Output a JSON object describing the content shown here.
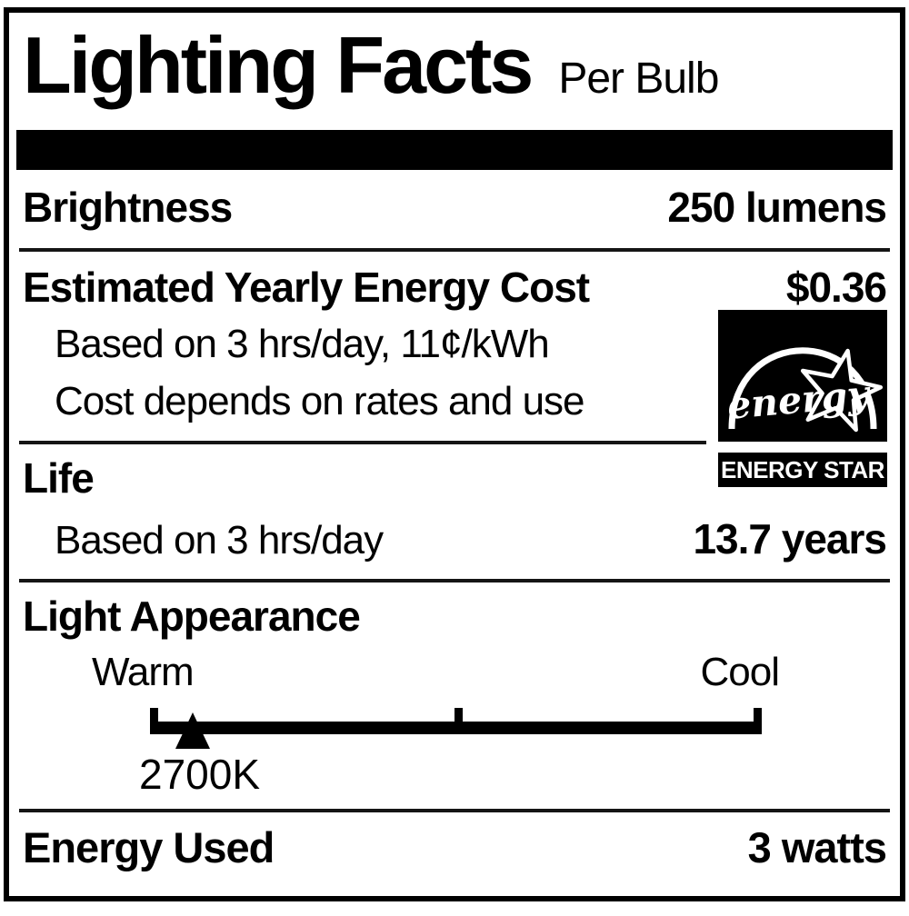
{
  "title": "Lighting Facts",
  "subtitle": "Per Bulb",
  "brightness": {
    "label": "Brightness",
    "value": "250 lumens"
  },
  "energy_cost": {
    "label": "Estimated Yearly Energy Cost",
    "value": "$0.36",
    "notes": [
      "Based on 3 hrs/day, 11¢/kWh",
      "Cost depends on rates and use"
    ]
  },
  "life": {
    "label": "Life",
    "note": "Based on 3 hrs/day",
    "value": "13.7 years"
  },
  "light_appearance": {
    "label": "Light Appearance",
    "warm_label": "Warm",
    "cool_label": "Cool",
    "color_temp": "2700K",
    "marker_position_pct": 7
  },
  "energy_used": {
    "label": "Energy Used",
    "value": "3 watts"
  },
  "energy_star": {
    "script_text": "energy",
    "bar_text": "ENERGY STAR"
  },
  "colors": {
    "ink": "#000000",
    "paper": "#ffffff"
  }
}
